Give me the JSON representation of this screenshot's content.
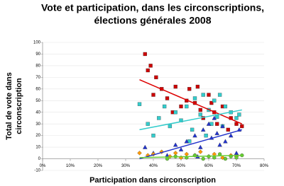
{
  "chart_data": {
    "type": "scatter",
    "title": [
      "Vote et participation, dans les circonscriptions,",
      "élections générales 2008"
    ],
    "x_label": "Participation dans circonscription",
    "y_label": [
      "Total de vote dans",
      "circonscription"
    ],
    "xlim": [
      0,
      80
    ],
    "xticks": [
      {
        "value": 0,
        "label": "0%"
      },
      {
        "value": 10,
        "label": "10%"
      },
      {
        "value": 20,
        "label": "20%"
      },
      {
        "value": 30,
        "label": "30%"
      },
      {
        "value": 40,
        "label": "40%"
      },
      {
        "value": 50,
        "label": "50%"
      },
      {
        "value": 60,
        "label": "60%"
      },
      {
        "value": 70,
        "label": "70%"
      },
      {
        "value": 80,
        "label": "80%"
      }
    ],
    "ylim": [
      -10,
      100
    ],
    "yticks": [
      -10,
      0,
      10,
      20,
      30,
      40,
      50,
      60,
      70,
      80,
      90,
      100
    ],
    "grid": true,
    "series": [
      {
        "color": "#cc0000",
        "marker": "square",
        "x": [
          37,
          38,
          39,
          41,
          40,
          43,
          45,
          47,
          48,
          50,
          52,
          53,
          55,
          57,
          58,
          60,
          62,
          63,
          65,
          67,
          68,
          70,
          72,
          56,
          61
        ],
        "values": [
          90,
          76,
          80,
          70,
          55,
          60,
          52,
          40,
          62,
          45,
          50,
          60,
          48,
          42,
          35,
          55,
          40,
          30,
          45,
          25,
          35,
          30,
          28,
          62,
          48
        ]
      },
      {
        "color": "#33cccc",
        "marker": "square",
        "x": [
          35,
          38,
          40,
          42,
          44,
          46,
          48,
          50,
          52,
          54,
          55,
          57,
          58,
          60,
          61,
          62,
          63,
          64,
          65,
          66,
          68,
          70,
          71,
          59,
          53
        ],
        "values": [
          47,
          30,
          20,
          35,
          45,
          28,
          40,
          33,
          45,
          25,
          52,
          38,
          55,
          42,
          30,
          50,
          36,
          55,
          28,
          45,
          40,
          35,
          38,
          20,
          15
        ]
      },
      {
        "color": "#2233cc",
        "marker": "triangle",
        "x": [
          37,
          40,
          45,
          48,
          50,
          52,
          55,
          57,
          58,
          60,
          61,
          62,
          63,
          64,
          65,
          66,
          68,
          70,
          71,
          56
        ],
        "values": [
          10,
          5,
          3,
          12,
          8,
          15,
          20,
          10,
          25,
          30,
          18,
          35,
          22,
          12,
          28,
          15,
          20,
          5,
          25,
          2
        ]
      },
      {
        "color": "#ff9900",
        "marker": "diamond",
        "x": [
          35,
          38,
          40,
          43,
          46,
          48,
          50,
          52,
          55,
          57,
          60,
          62,
          65,
          68,
          70
        ],
        "values": [
          5,
          3,
          4,
          6,
          2,
          5,
          1,
          4,
          3,
          6,
          2,
          4,
          1,
          3,
          2
        ]
      },
      {
        "color": "#66cc33",
        "marker": "circle",
        "x": [
          45,
          48,
          52,
          55,
          58,
          60,
          62,
          64,
          66,
          68,
          70,
          72
        ],
        "values": [
          0,
          2,
          1,
          3,
          0,
          2,
          1,
          4,
          0,
          2,
          1,
          3
        ]
      }
    ],
    "trendlines": [
      {
        "color": "#dd0000",
        "x": [
          35,
          72
        ],
        "values": [
          68,
          30
        ]
      },
      {
        "color": "#33cccc",
        "x": [
          35,
          72
        ],
        "values": [
          25,
          42
        ]
      },
      {
        "color": "#2233cc",
        "x": [
          35,
          72
        ],
        "values": [
          0,
          25
        ]
      },
      {
        "color": "#66cc33",
        "x": [
          35,
          72
        ],
        "values": [
          1,
          3
        ]
      }
    ]
  }
}
